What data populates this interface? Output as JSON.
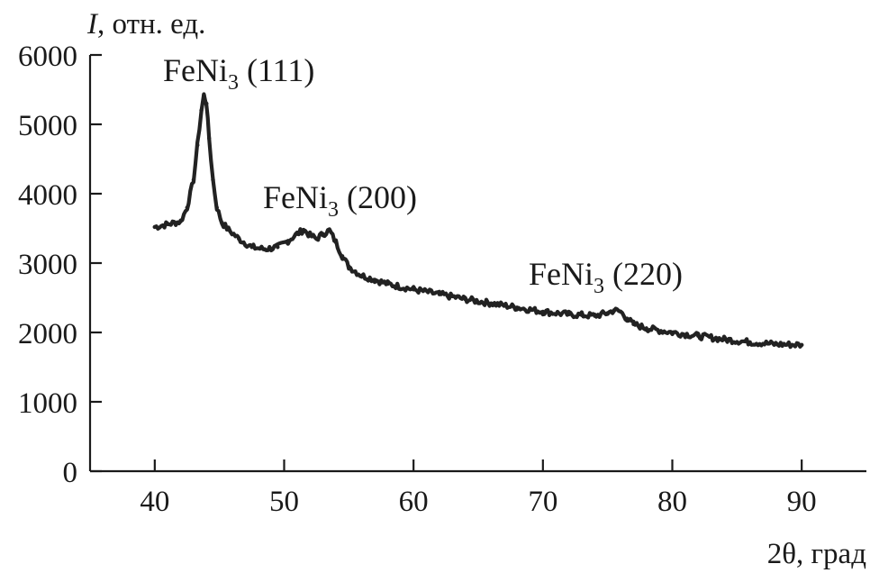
{
  "chart_data": {
    "type": "line",
    "title": "",
    "xlabel": "2θ, град",
    "ylabel_italic": "I",
    "ylabel_rest": ", отн. ед.",
    "xlim": [
      35,
      95
    ],
    "ylim": [
      0,
      6000
    ],
    "xticks": [
      40,
      50,
      60,
      70,
      80,
      90
    ],
    "yticks": [
      0,
      1000,
      2000,
      3000,
      4000,
      5000,
      6000
    ],
    "grid": false,
    "series": [
      {
        "x": [
          40,
          41,
          42,
          42.5,
          43,
          43.3,
          43.6,
          43.8,
          44,
          44.2,
          44.5,
          44.8,
          45.2,
          45.7,
          46.5,
          47.5,
          48.5,
          49.5,
          50.3,
          51,
          51.5,
          52,
          52.5,
          53,
          53.5,
          54,
          54.5,
          55,
          55.5,
          56,
          57,
          58,
          60,
          62,
          64,
          66,
          68,
          70,
          72,
          73,
          74,
          75,
          75.5,
          76,
          76.5,
          77,
          78,
          80,
          82,
          84,
          86,
          88,
          90
        ],
        "y": [
          3520,
          3560,
          3600,
          3800,
          4200,
          4700,
          5200,
          5420,
          5300,
          4800,
          4200,
          3800,
          3580,
          3480,
          3350,
          3230,
          3200,
          3230,
          3320,
          3420,
          3480,
          3400,
          3350,
          3420,
          3470,
          3300,
          3100,
          2950,
          2880,
          2820,
          2760,
          2700,
          2620,
          2550,
          2480,
          2420,
          2360,
          2300,
          2260,
          2250,
          2240,
          2280,
          2320,
          2300,
          2200,
          2120,
          2060,
          2000,
          1950,
          1900,
          1860,
          1830,
          1820
        ]
      }
    ],
    "annotations": [
      {
        "formula": "FeNi",
        "sub": "3",
        "hkl": " (111)",
        "x": 44
      },
      {
        "formula": "FeNi",
        "sub": "3",
        "hkl": " (200)",
        "x": 51.5
      },
      {
        "formula": "FeNi",
        "sub": "3",
        "hkl": " (220)",
        "x": 75.5
      }
    ]
  }
}
